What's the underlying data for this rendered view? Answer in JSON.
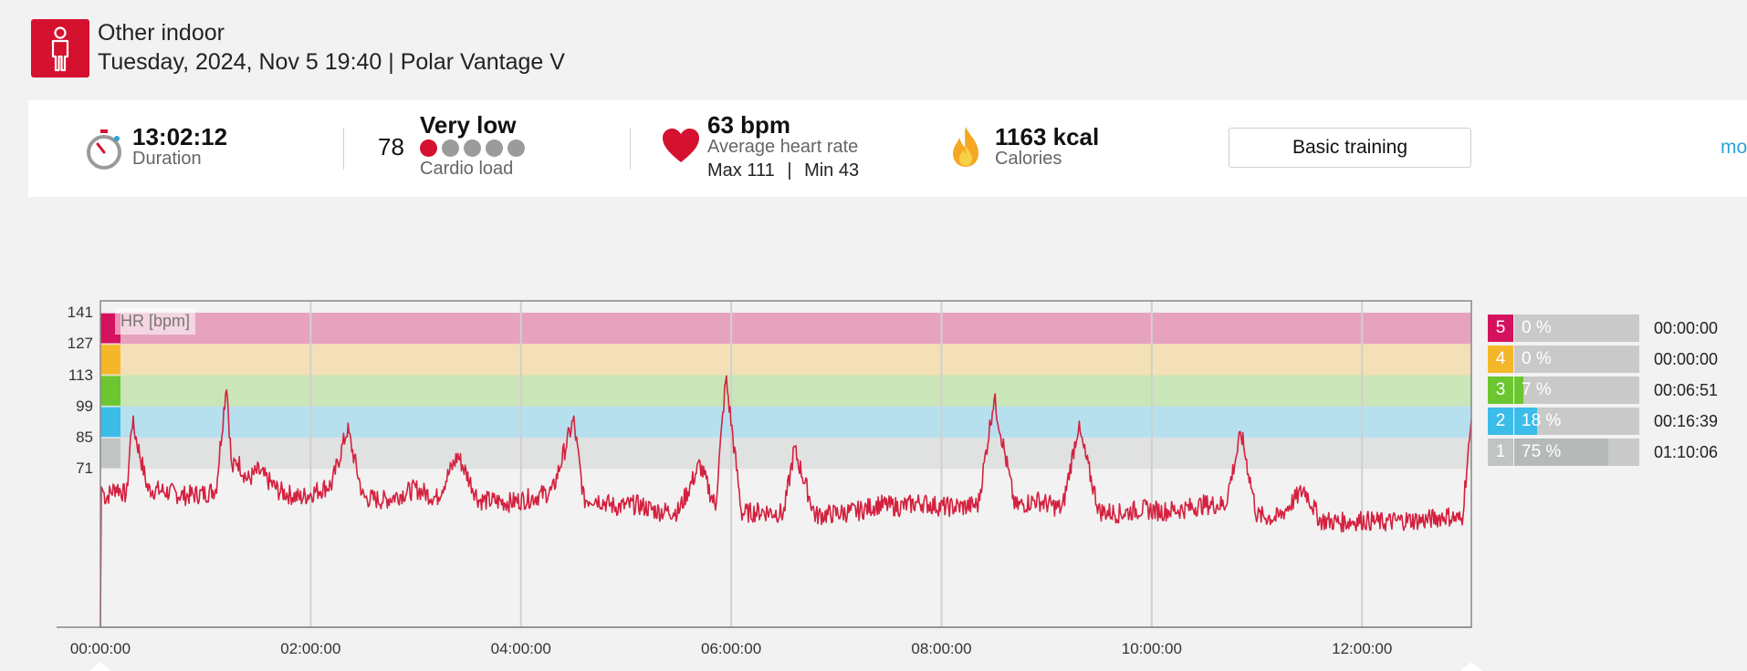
{
  "header": {
    "sport_icon": "person-standing-icon",
    "title": "Other indoor",
    "subtitle": "Tuesday, 2024, Nov 5 19:40 | Polar Vantage V"
  },
  "summary": {
    "duration": {
      "icon": "stopwatch-icon",
      "value": "13:02:12",
      "label": "Duration"
    },
    "cardio": {
      "value": "78",
      "level": "Very low",
      "label": "Cardio load",
      "dots_total": 5,
      "dots_active": 1
    },
    "heart": {
      "icon": "heart-icon",
      "value": "63 bpm",
      "label": "Average heart rate",
      "max_label": "Max 111",
      "separator": "|",
      "min_label": "Min 43"
    },
    "calories": {
      "icon": "flame-icon",
      "value": "1163 kcal",
      "label": "Calories"
    },
    "button_label": "Basic training",
    "more_label": "mo"
  },
  "colors": {
    "brand": "#d4112e",
    "zone5": "#d4125e",
    "zone4": "#f5b72a",
    "zone3": "#6cc62f",
    "zone2": "#3cbce8",
    "zone1": "#c1c4c4",
    "line": "#d4213f"
  },
  "chart_data": {
    "type": "line",
    "title": "",
    "series_label": "HR [bpm]",
    "xlabel": "",
    "ylabel": "",
    "x_ticks": [
      "00:00:00",
      "02:00:00",
      "04:00:00",
      "06:00:00",
      "08:00:00",
      "10:00:00",
      "12:00:00"
    ],
    "y_ticks": [
      141,
      127,
      113,
      99,
      85,
      71
    ],
    "xlim_hours": [
      0,
      13.04
    ],
    "ylim": [
      0,
      141
    ],
    "zones": [
      {
        "zone": 5,
        "from": 127,
        "to": 141
      },
      {
        "zone": 4,
        "from": 113,
        "to": 127
      },
      {
        "zone": 3,
        "from": 99,
        "to": 113
      },
      {
        "zone": 2,
        "from": 85,
        "to": 99
      },
      {
        "zone": 1,
        "from": 71,
        "to": 85
      }
    ],
    "series": [
      {
        "x_hours": [
          0,
          0.05,
          0.15,
          0.25,
          0.3,
          0.45,
          0.6,
          0.8,
          1.0,
          1.1,
          1.2,
          1.25,
          1.3,
          1.4,
          1.5,
          1.7,
          1.9,
          2.1,
          2.2,
          2.35,
          2.5,
          2.7,
          3.0,
          3.2,
          3.4,
          3.6,
          3.9,
          4.1,
          4.3,
          4.5,
          4.6,
          4.7,
          4.9,
          5.1,
          5.3,
          5.5,
          5.7,
          5.85,
          5.95,
          6.1,
          6.3,
          6.5,
          6.6,
          6.8,
          7.0,
          7.2,
          7.4,
          7.6,
          7.8,
          8.0,
          8.2,
          8.35,
          8.5,
          8.7,
          8.9,
          9.15,
          9.3,
          9.5,
          9.7,
          9.9,
          10.1,
          10.3,
          10.5,
          10.7,
          10.85,
          11.0,
          11.2,
          11.45,
          11.6,
          11.8,
          12.0,
          12.2,
          12.4,
          12.6,
          12.8,
          12.95,
          13.04
        ],
        "hr_bpm": [
          64,
          58,
          63,
          59,
          93,
          62,
          61,
          59,
          60,
          62,
          110,
          70,
          75,
          66,
          70,
          61,
          58,
          62,
          64,
          89,
          58,
          57,
          62,
          58,
          77,
          57,
          56,
          58,
          61,
          93,
          57,
          58,
          54,
          55,
          52,
          52,
          73,
          54,
          112,
          51,
          52,
          51,
          80,
          50,
          51,
          52,
          55,
          54,
          56,
          54,
          54,
          55,
          103,
          54,
          57,
          53,
          90,
          52,
          51,
          53,
          52,
          53,
          55,
          55,
          87,
          50,
          49,
          62,
          48,
          47,
          48,
          47,
          48,
          48,
          50,
          48,
          93
        ]
      }
    ]
  },
  "zone_legend": [
    {
      "zone": "5",
      "percent": "0 %",
      "fraction": 0.0,
      "time": "00:00:00"
    },
    {
      "zone": "4",
      "percent": "0 %",
      "fraction": 0.0,
      "time": "00:00:00"
    },
    {
      "zone": "3",
      "percent": "7 %",
      "fraction": 0.07,
      "time": "00:06:51"
    },
    {
      "zone": "2",
      "percent": "18 %",
      "fraction": 0.18,
      "time": "00:16:39"
    },
    {
      "zone": "1",
      "percent": "75 %",
      "fraction": 0.75,
      "time": "01:10:06"
    }
  ]
}
